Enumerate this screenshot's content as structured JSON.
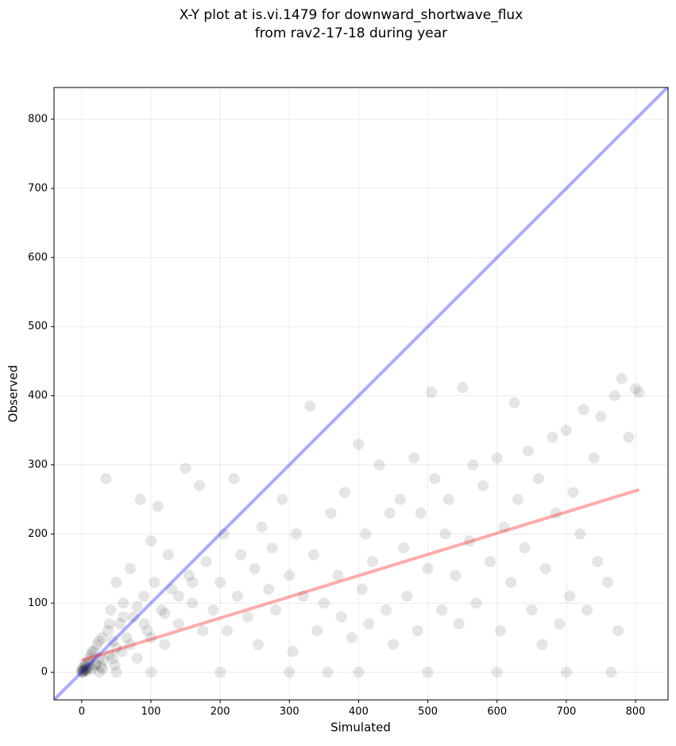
{
  "chart_data": {
    "type": "scatter",
    "title": [
      "X-Y plot at is.vi.1479 for downward_shortwave_flux",
      "from rav2-17-18 during year"
    ],
    "xlabel": "Simulated",
    "ylabel": "Observed",
    "xlim": [
      -40,
      847
    ],
    "ylim": [
      -40,
      846
    ],
    "xticks": [
      0,
      100,
      200,
      300,
      400,
      500,
      600,
      700,
      800
    ],
    "yticks": [
      0,
      100,
      200,
      300,
      400,
      500,
      600,
      700,
      800
    ],
    "grid": true,
    "series": [
      {
        "color": "#000000",
        "x": [
          0,
          0,
          1,
          2,
          3,
          4,
          5,
          6,
          8,
          10,
          12,
          14,
          15,
          18,
          20,
          22,
          25,
          28,
          30,
          32,
          35,
          38,
          40,
          42,
          45,
          48,
          50,
          55,
          58,
          60,
          65,
          70,
          75,
          80,
          85,
          90,
          95,
          100,
          105,
          110,
          115,
          120,
          125,
          130,
          140,
          150,
          155,
          160,
          170,
          175,
          180,
          190,
          200,
          205,
          210,
          220,
          225,
          230,
          240,
          250,
          255,
          260,
          270,
          275,
          280,
          290,
          300,
          305,
          310,
          320,
          330,
          335,
          340,
          350,
          355,
          360,
          370,
          375,
          380,
          390,
          400,
          405,
          410,
          415,
          420,
          430,
          440,
          445,
          450,
          460,
          465,
          470,
          480,
          485,
          490,
          500,
          505,
          510,
          520,
          525,
          530,
          540,
          545,
          550,
          560,
          565,
          570,
          580,
          590,
          600,
          605,
          610,
          620,
          625,
          630,
          640,
          645,
          650,
          660,
          665,
          670,
          680,
          685,
          690,
          700,
          705,
          710,
          720,
          725,
          730,
          740,
          745,
          750,
          760,
          765,
          770,
          775,
          780,
          790,
          800,
          805,
          700,
          600,
          500,
          400,
          300,
          200,
          100,
          50,
          25,
          2,
          4,
          6,
          8,
          10,
          15,
          20,
          25,
          30,
          40,
          45,
          50,
          60,
          70,
          80,
          90,
          100,
          120,
          140,
          160
        ],
        "y": [
          0,
          2,
          5,
          1,
          8,
          3,
          12,
          4,
          6,
          15,
          10,
          25,
          5,
          30,
          12,
          40,
          20,
          8,
          50,
          18,
          280,
          60,
          25,
          90,
          45,
          10,
          130,
          70,
          30,
          100,
          50,
          150,
          80,
          20,
          250,
          110,
          60,
          190,
          130,
          240,
          90,
          40,
          170,
          120,
          70,
          295,
          140,
          100,
          270,
          60,
          160,
          90,
          130,
          200,
          60,
          280,
          110,
          170,
          80,
          150,
          40,
          210,
          120,
          180,
          90,
          250,
          140,
          30,
          200,
          110,
          385,
          170,
          60,
          100,
          0,
          230,
          140,
          80,
          260,
          50,
          330,
          120,
          200,
          70,
          160,
          300,
          90,
          230,
          40,
          250,
          180,
          110,
          310,
          60,
          230,
          150,
          405,
          280,
          90,
          200,
          250,
          140,
          70,
          412,
          190,
          300,
          100,
          270,
          160,
          310,
          60,
          210,
          130,
          390,
          250,
          180,
          320,
          90,
          280,
          40,
          150,
          340,
          230,
          70,
          350,
          110,
          260,
          200,
          380,
          90,
          310,
          160,
          370,
          130,
          0,
          400,
          60,
          425,
          340,
          410,
          405,
          0,
          0,
          0,
          0,
          0,
          0,
          0,
          0,
          0,
          0,
          3,
          8,
          2,
          20,
          30,
          10,
          45,
          5,
          70,
          20,
          35,
          80,
          40,
          95,
          70,
          50,
          85,
          110,
          130
        ]
      }
    ],
    "lines": [
      {
        "color": "#0000ff",
        "x": [
          -40,
          847
        ],
        "y": [
          -40,
          847
        ]
      },
      {
        "color": "#ff0000",
        "x": [
          0,
          805
        ],
        "y": [
          17,
          264
        ]
      }
    ]
  }
}
